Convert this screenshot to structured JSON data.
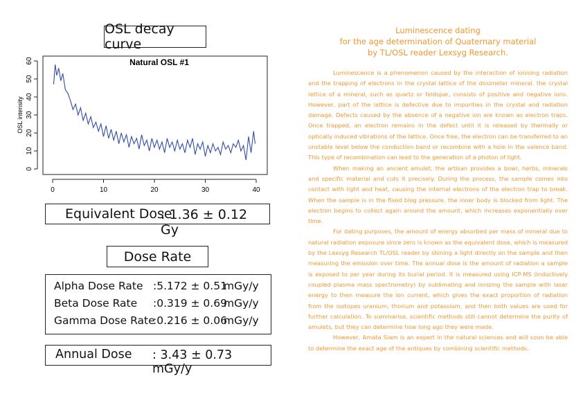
{
  "osl_title": "OSL decay curve",
  "chart_data": {
    "type": "line",
    "title": "Natural OSL #1",
    "xlabel": "",
    "ylabel": "OSL intensity",
    "xlim": [
      0,
      40
    ],
    "ylim": [
      0,
      60
    ],
    "x_ticks": [
      0,
      10,
      20,
      30,
      40
    ],
    "y_ticks": [
      0,
      10,
      20,
      30,
      40,
      50,
      60
    ],
    "grid": false,
    "color": "#2f4ba3",
    "series": [
      {
        "x": [
          0.2,
          0.5,
          0.8,
          1.2,
          1.6,
          2.0,
          2.5,
          3.0,
          3.5,
          4.0,
          4.5,
          5.0,
          5.5,
          6.0,
          6.5,
          7.0,
          7.5,
          8.0,
          8.5,
          9.0,
          9.5,
          10.0,
          10.5,
          11.0,
          11.5,
          12.0,
          12.5,
          13.0,
          13.5,
          14.0,
          14.5,
          15.0,
          15.5,
          16.0,
          16.5,
          17.0,
          17.5,
          18.0,
          18.5,
          19.0,
          19.5,
          20.0,
          20.5,
          21.0,
          21.5,
          22.0,
          22.5,
          23.0,
          23.5,
          24.0,
          24.5,
          25.0,
          25.5,
          26.0,
          26.5,
          27.0,
          27.5,
          28.0,
          28.5,
          29.0,
          29.5,
          30.0,
          30.5,
          31.0,
          31.5,
          32.0,
          32.5,
          33.0,
          33.5,
          34.0,
          34.5,
          35.0,
          35.5,
          36.0,
          36.5,
          37.0,
          37.5,
          38.0,
          38.5,
          39.0,
          39.5,
          39.8
        ],
        "y": [
          47,
          58,
          52,
          56,
          49,
          53,
          44,
          42,
          38,
          33,
          36,
          30,
          34,
          27,
          31,
          25,
          29,
          23,
          26,
          21,
          25,
          18,
          24,
          17,
          22,
          16,
          21,
          14,
          20,
          15,
          19,
          12,
          18,
          14,
          17,
          11,
          19,
          13,
          16,
          10,
          17,
          12,
          16,
          11,
          15,
          9,
          17,
          12,
          15,
          10,
          16,
          11,
          14,
          9,
          16,
          12,
          17,
          8,
          14,
          11,
          15,
          7,
          13,
          9,
          14,
          10,
          12,
          8,
          15,
          11,
          13,
          9,
          14,
          12,
          16,
          10,
          13,
          5,
          18,
          9,
          21,
          14
        ]
      }
    ]
  },
  "equivalent_dose": {
    "label": "Equivalent Dose",
    "value": ": 1.36 ± 0.12  Gy"
  },
  "dose_rate_title": "Dose Rate",
  "dose_rates": [
    {
      "name": "Alpha Dose Rate",
      "value": ":5.172 ± 0.51",
      "unit": "mGy/y"
    },
    {
      "name": "Beta Dose Rate",
      "value": ":0.319 ± 0.69",
      "unit": "mGy/y"
    },
    {
      "name": "Gamma Dose Rate",
      "value": ":0.216 ± 0.06",
      "unit": "mGy/y"
    }
  ],
  "annual_dose": {
    "label": "Annual Dose",
    "value": ": 3.43 ± 0.73 mGy/y"
  },
  "doc_title_lines": [
    "Luminescence dating",
    "for the age determination of Quaternary material",
    "by TL/OSL reader Lexsyg Research."
  ],
  "paragraphs": [
    "Luminescence is a phenomenon caused by the interaction of ionising radiation and the trapping of electrons in the crystal lattice of the dosimeter mineral. the crystal lattice of a mineral, such as quartz or feldspar, consists of positive and negative ions. However, part of the lattice is defective due to impurities in the crystal and radiation damage. Defects caused by the absence of a negative ion are known as electron traps. Once trapped, an electron remains in the defect until it is released by thermally or optically induced vibrations of the lattice. Once free, the electron can be transferred to an unstable level below the conduction band or recombine with a hole in the valence band. This type of recombination can lead to the generation of a photon of light.",
    "When making an ancient amulet, the artisan provides a bowl, herbs, minerals and specific material and cuts it precisely. During the process, the sample comes into contact with light and heat, causing the internal electrons of the electron trap to break. When the sample is in the fixed blog pressure, the inner body is blocked from light. The electron begins to collect again around the amount, which increases exponentially over time.",
    "For dating purposes, the amount of energy absorbed per mass of mineral due to natural radiation exposure since zero is known as the equivalent dose, which is measured by the Lexsyg Research TL/OSL reader by shining a light directly on the sample and then measuring the emission over time. The annual dose is the amount of radiation a sample is exposed to per year during its burial period. It is measured using ICP-MS (inductively coupled plasma mass spectrometry) by sublimating and ionizing the sample with laser energy to then measure the ion current, which gives the exact proportion of radiation from the isotopes uranium, thorium and potassium, and then both values are used for further calculation. To summarise, scientific methods still cannot determine the purity of amulets, but they can determine how long ago they were made.",
    "However, Amata Siam is an expert in the natural sciences and will soon be able to determine the exact age of the antiques by combining scientific methods."
  ]
}
